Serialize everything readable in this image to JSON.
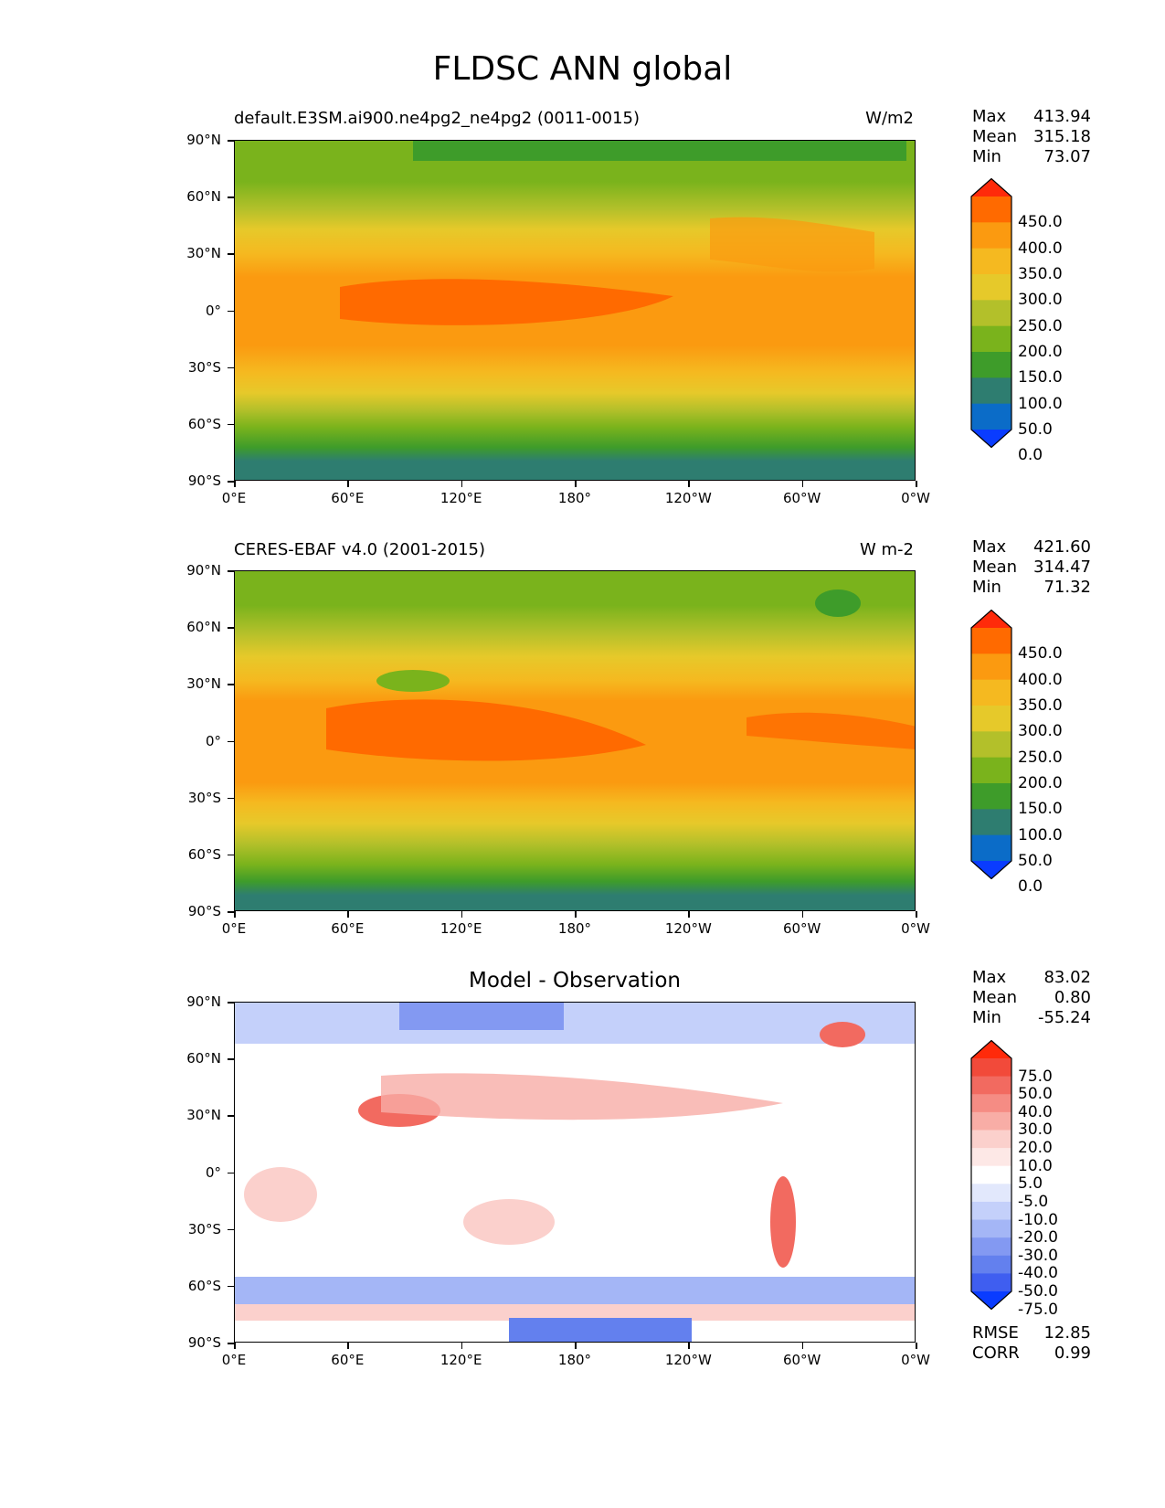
{
  "suptitle": "FLDSC ANN global",
  "x_ticks": [
    "0°E",
    "60°E",
    "120°E",
    "180°",
    "120°W",
    "60°W",
    "0°W"
  ],
  "y_ticks": [
    "90°N",
    "60°N",
    "30°N",
    "0°",
    "30°S",
    "60°S",
    "90°S"
  ],
  "panels": [
    {
      "title_left": "default.E3SM.ai900.ne4pg2_ne4pg2 (0011-0015)",
      "title_right": "W/m2",
      "title_center": "",
      "stats": {
        "max_label": "Max",
        "max": "413.94",
        "mean_label": "Mean",
        "mean": "315.18",
        "min_label": "Min",
        "min": "73.07"
      },
      "colorbar_labels": [
        "450.0",
        "400.0",
        "350.0",
        "300.0",
        "250.0",
        "200.0",
        "150.0",
        "100.0",
        "50.0",
        "0.0"
      ]
    },
    {
      "title_left": "CERES-EBAF v4.0 (2001-2015)",
      "title_right": "W m-2",
      "title_center": "",
      "stats": {
        "max_label": "Max",
        "max": "421.60",
        "mean_label": "Mean",
        "mean": "314.47",
        "min_label": "Min",
        "min": "71.32"
      },
      "colorbar_labels": [
        "450.0",
        "400.0",
        "350.0",
        "300.0",
        "250.0",
        "200.0",
        "150.0",
        "100.0",
        "50.0",
        "0.0"
      ]
    },
    {
      "title_left": "",
      "title_right": "",
      "title_center": "Model - Observation",
      "stats": {
        "max_label": "Max",
        "max": "83.02",
        "mean_label": "Mean",
        "mean": "0.80",
        "min_label": "Min",
        "min": "-55.24"
      },
      "colorbar_labels": [
        "75.0",
        "50.0",
        "40.0",
        "30.0",
        "20.0",
        "10.0",
        "5.0",
        "-5.0",
        "-10.0",
        "-20.0",
        "-30.0",
        "-40.0",
        "-50.0",
        "-75.0"
      ],
      "metrics": {
        "rmse_label": "RMSE",
        "rmse": "12.85",
        "corr_label": "CORR",
        "corr": "0.99"
      }
    }
  ],
  "colors": {
    "abs_levels": [
      "#ff2a0a",
      "#ff6a00",
      "#fb9a10",
      "#f5b920",
      "#e6c92a",
      "#b3c02a",
      "#7ab31c",
      "#3e9c2a",
      "#2e7d70",
      "#0b6cc8",
      "#0a3cff"
    ],
    "diff_levels": [
      "#ff2a0a",
      "#f24a3a",
      "#f26a60",
      "#f58c84",
      "#f8ada6",
      "#fbd0cc",
      "#fde8e6",
      "#ffffff",
      "#e2e8fc",
      "#c4d0fa",
      "#a4b6f6",
      "#8399f2",
      "#6380ee",
      "#3f5ef0",
      "#0a3cff"
    ]
  }
}
